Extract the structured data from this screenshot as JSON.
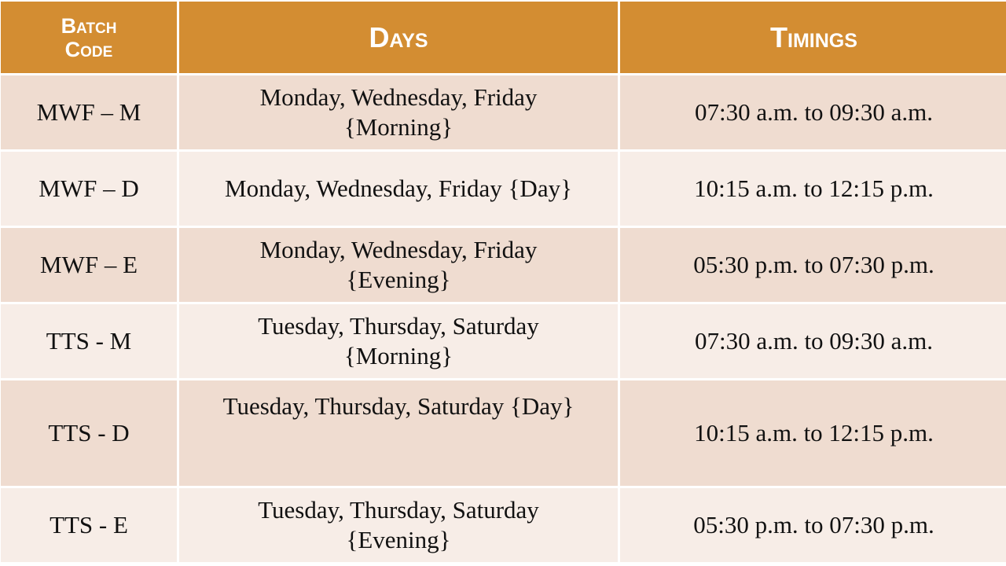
{
  "headers": {
    "batch_code": "Batch Code",
    "days": "Days",
    "timings": "Timings"
  },
  "rows": [
    {
      "code": "MWF – M",
      "days_line1": "Monday, Wednesday, Friday",
      "days_line2": "{Morning}",
      "timing": "07:30 a.m. to 09:30 a.m."
    },
    {
      "code": "MWF – D",
      "days_line1": "Monday, Wednesday, Friday {Day}",
      "days_line2": "",
      "timing": "10:15 a.m. to 12:15 p.m."
    },
    {
      "code": "MWF – E",
      "days_line1": "Monday, Wednesday, Friday",
      "days_line2": "{Evening}",
      "timing": "05:30 p.m. to 07:30 p.m."
    },
    {
      "code": "TTS -  M",
      "days_line1": "Tuesday, Thursday, Saturday",
      "days_line2": "{Morning}",
      "timing": "07:30 a.m. to 09:30 a.m."
    },
    {
      "code": "TTS -  D",
      "days_line1": "Tuesday, Thursday, Saturday {Day}",
      "days_line2": "",
      "timing": "10:15 a.m. to 12:15 p.m."
    },
    {
      "code": "TTS -  E",
      "days_line1": "Tuesday, Thursday, Saturday",
      "days_line2": "{Evening}",
      "timing": "05:30 p.m. to 07:30 p.m."
    }
  ],
  "colors": {
    "header": "#D38D32",
    "row_dark": "#EFDCD0",
    "row_light": "#F7EDE7"
  }
}
